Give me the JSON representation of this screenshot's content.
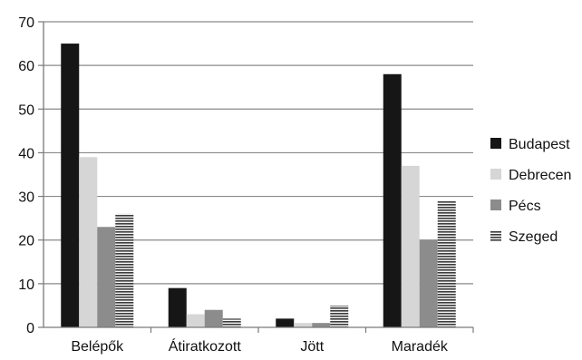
{
  "chart_data": {
    "type": "bar",
    "categories": [
      "Belépők",
      "Átiratkozott",
      "Jött",
      "Maradék"
    ],
    "series": [
      {
        "name": "Budapest",
        "values": [
          65,
          9,
          2,
          58
        ],
        "color": "#161616",
        "pattern": "solid"
      },
      {
        "name": "Debrecen",
        "values": [
          39,
          3,
          1,
          37
        ],
        "color": "#d6d6d6",
        "pattern": "solid"
      },
      {
        "name": "Pécs",
        "values": [
          23,
          4,
          1,
          20
        ],
        "color": "#8c8c8c",
        "pattern": "solid"
      },
      {
        "name": "Szeged",
        "values": [
          26,
          2,
          5,
          29
        ],
        "color": "#555555",
        "pattern": "horizontal-stripes"
      }
    ],
    "ylim": [
      0,
      70
    ],
    "yticks": [
      0,
      10,
      20,
      30,
      40,
      50,
      60,
      70
    ],
    "grid": true,
    "legend": "right"
  }
}
